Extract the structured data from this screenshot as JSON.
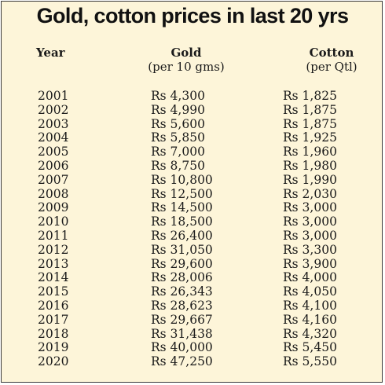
{
  "chart_data": {
    "type": "table",
    "title": "Gold, cotton prices in last 20 yrs",
    "columns": [
      {
        "key": "year",
        "label": "Year",
        "sublabel": ""
      },
      {
        "key": "gold",
        "label": "Gold",
        "sublabel": "(per 10 gms)"
      },
      {
        "key": "cotton",
        "label": "Cotton",
        "sublabel": "(per Qtl)"
      }
    ],
    "rows": [
      {
        "year": "2001",
        "gold": "Rs 4,300",
        "cotton": "Rs 1,825"
      },
      {
        "year": "2002",
        "gold": "Rs 4,990",
        "cotton": "Rs 1,875"
      },
      {
        "year": "2003",
        "gold": "Rs 5,600",
        "cotton": "Rs 1,875"
      },
      {
        "year": "2004",
        "gold": "Rs 5,850",
        "cotton": "Rs 1,925"
      },
      {
        "year": "2005",
        "gold": "Rs 7,000",
        "cotton": "Rs 1,960"
      },
      {
        "year": "2006",
        "gold": "Rs 8,750",
        "cotton": "Rs 1,980"
      },
      {
        "year": "2007",
        "gold": "Rs 10,800",
        "cotton": "Rs 1,990"
      },
      {
        "year": "2008",
        "gold": "Rs 12,500",
        "cotton": "Rs 2,030"
      },
      {
        "year": "2009",
        "gold": "Rs 14,500",
        "cotton": "Rs 3,000"
      },
      {
        "year": "2010",
        "gold": "Rs 18,500",
        "cotton": "Rs 3,000"
      },
      {
        "year": "2011",
        "gold": "Rs 26,400",
        "cotton": "Rs 3,000"
      },
      {
        "year": "2012",
        "gold": "Rs 31,050",
        "cotton": "Rs 3,300"
      },
      {
        "year": "2013",
        "gold": "Rs 29,600",
        "cotton": "Rs 3,900"
      },
      {
        "year": "2014",
        "gold": "Rs 28,006",
        "cotton": "Rs 4,000"
      },
      {
        "year": "2015",
        "gold": "Rs 26,343",
        "cotton": "Rs 4,050"
      },
      {
        "year": "2016",
        "gold": "Rs 28,623",
        "cotton": "Rs 4,100"
      },
      {
        "year": "2017",
        "gold": "Rs 29,667",
        "cotton": "Rs 4,160"
      },
      {
        "year": "2018",
        "gold": "Rs 31,438",
        "cotton": "Rs 4,320"
      },
      {
        "year": "2019",
        "gold": "Rs 40,000",
        "cotton": "Rs 5,450"
      },
      {
        "year": "2020",
        "gold": "Rs 47,250",
        "cotton": "Rs 5,550"
      }
    ]
  },
  "colors": {
    "background": "#fdf5d9",
    "text": "#1a1a1a",
    "border": "#3a3a3a"
  }
}
